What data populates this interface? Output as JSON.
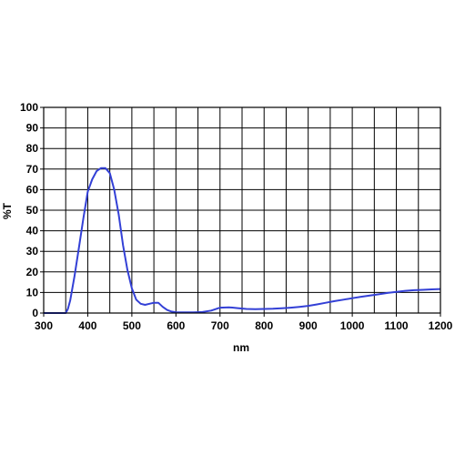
{
  "chart_data": {
    "type": "line",
    "title": "",
    "xlabel": "nm",
    "ylabel": "%T",
    "xlim": [
      300,
      1200
    ],
    "ylim": [
      0,
      100
    ],
    "x_ticks": [
      300,
      400,
      500,
      600,
      700,
      800,
      900,
      1000,
      1100,
      1200
    ],
    "y_ticks": [
      0,
      10,
      20,
      30,
      40,
      50,
      60,
      70,
      80,
      90,
      100
    ],
    "x_tick_labels": [
      "300",
      "400",
      "500",
      "600",
      "700",
      "800",
      "900",
      "1000",
      "1100",
      "1200"
    ],
    "y_tick_labels": [
      "0",
      "10",
      "20",
      "30",
      "40",
      "50",
      "60",
      "70",
      "80",
      "90",
      "100"
    ],
    "grid": true,
    "series_color": "#3340d6",
    "series": [
      {
        "x": [
          300,
          340,
          350,
          355,
          360,
          370,
          380,
          390,
          400,
          410,
          420,
          430,
          440,
          450,
          460,
          470,
          480,
          490,
          500,
          510,
          520,
          530,
          540,
          550,
          560,
          570,
          580,
          590,
          600,
          620,
          640,
          660,
          680,
          700,
          720,
          740,
          760,
          780,
          800,
          820,
          840,
          860,
          880,
          900,
          920,
          940,
          960,
          980,
          1000,
          1020,
          1040,
          1060,
          1080,
          1100,
          1120,
          1140,
          1160,
          1180,
          1200
        ],
        "values": [
          0,
          0,
          0,
          2,
          6,
          18,
          32,
          46,
          59,
          65,
          69,
          70.5,
          70.5,
          68,
          60,
          48,
          33,
          21,
          12,
          6.5,
          4.5,
          4,
          4.5,
          5,
          5,
          3,
          1.5,
          0.7,
          0.4,
          0.3,
          0.3,
          0.5,
          1.2,
          2.6,
          2.8,
          2.4,
          2.0,
          1.9,
          2.0,
          2.1,
          2.3,
          2.6,
          3.0,
          3.5,
          4.2,
          5.0,
          5.8,
          6.5,
          7.2,
          7.9,
          8.5,
          9.1,
          9.8,
          10.3,
          10.8,
          11.1,
          11.3,
          11.5,
          11.7
        ]
      }
    ]
  }
}
